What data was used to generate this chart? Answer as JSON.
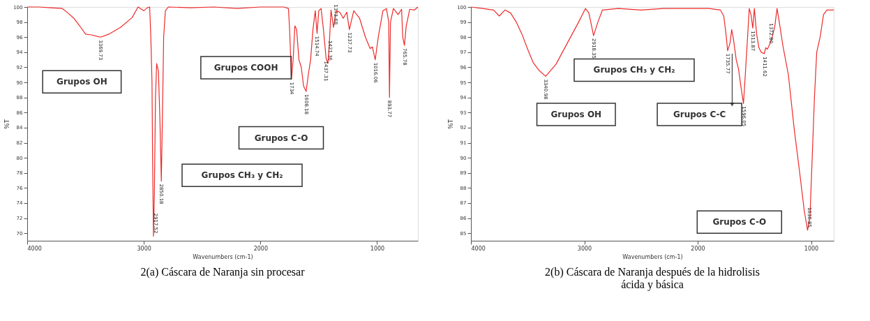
{
  "chart_data": [
    {
      "type": "line",
      "title": "2(a) Cáscara de Naranja sin procesar",
      "xlabel": "Wavenumbers (cm-1)",
      "ylabel": "%T",
      "xlim": [
        4000,
        650
      ],
      "xticks": [
        4000,
        3000,
        2000,
        1000
      ],
      "ylim": [
        69,
        100
      ],
      "yticks": [
        100,
        98,
        96,
        94,
        92,
        90,
        88,
        86,
        84,
        82,
        80,
        78,
        76,
        74,
        72,
        70
      ],
      "grid": false,
      "series": [
        {
          "color": "#ee2a2a",
          "x": [
            4000,
            3900,
            3800,
            3700,
            3650,
            3600,
            3550,
            3500,
            3450,
            3400,
            3369.73,
            3300,
            3200,
            3100,
            3050,
            3000,
            2970,
            2950,
            2940,
            2930,
            2925,
            2917.52,
            2910,
            2900,
            2890,
            2875,
            2862,
            2850.18,
            2840,
            2830,
            2815,
            2790,
            2600,
            2400,
            2200,
            2000,
            1800,
            1760,
            1750,
            1734,
            1720,
            1705,
            1690,
            1670,
            1650,
            1630,
            1608.18,
            1590,
            1570,
            1550,
            1530,
            1514.74,
            1500,
            1480,
            1460,
            1437.31,
            1421.36,
            1410,
            1395,
            1373.68,
            1350,
            1320,
            1290,
            1260,
            1237.73,
            1200,
            1150,
            1100,
            1060,
            1040,
            1016.06,
            990,
            950,
            920,
            900,
            893.77,
            885,
            860,
            820,
            790,
            780,
            765.78,
            750,
            720,
            680,
            650
          ],
          "values": [
            100,
            100,
            99.9,
            99.8,
            99.2,
            98.5,
            97.5,
            96.4,
            96.3,
            96.1,
            96.0,
            96.4,
            97.3,
            98.6,
            100,
            99.5,
            99.9,
            100,
            96,
            90,
            80,
            69.6,
            75,
            88,
            92.5,
            91.5,
            85,
            76.9,
            86,
            96,
            99.5,
            100,
            99.9,
            100,
            99.8,
            100,
            100,
            99.8,
            97,
            90.4,
            93,
            97.5,
            97,
            93,
            92,
            89.5,
            88.8,
            91,
            93,
            97,
            99.5,
            96.5,
            99.5,
            99.8,
            97,
            93.2,
            92.5,
            95,
            99.6,
            97.3,
            99.5,
            99.3,
            98.5,
            99.3,
            97.0,
            99.5,
            98.5,
            96,
            94.5,
            94.7,
            93.0,
            96,
            99.5,
            99.8,
            98,
            88.0,
            98,
            99.8,
            99,
            99.7,
            96,
            94.9,
            97.5,
            99.7,
            99.6,
            100
          ]
        }
      ],
      "annotations": [
        "Grupos OH",
        "Grupos COOH",
        "Grupos C-O",
        "Grupos CH₃ y CH₂",
        {
          "text": "3369.73",
          "x": 3369.73,
          "y": 96.0
        },
        {
          "text": "2917.52",
          "x": 2917.52,
          "y": 69.6
        },
        {
          "text": "2850.18",
          "x": 2850.18,
          "y": 76.9
        },
        {
          "text": "1734",
          "x": 1734,
          "y": 90.4
        },
        {
          "text": "1608.18",
          "x": 1608.18,
          "y": 88.8
        },
        {
          "text": "1514.74",
          "x": 1514.74,
          "y": 96.5
        },
        {
          "text": "1437.31",
          "x": 1437.31,
          "y": 93.2
        },
        {
          "text": "1421.36",
          "x": 1421.36,
          "y": 92.5
        },
        {
          "text": "1373.68",
          "x": 1373.68,
          "y": 97.3
        },
        {
          "text": "1237.73",
          "x": 1237.73,
          "y": 97.0
        },
        {
          "text": "1016.06",
          "x": 1016.06,
          "y": 93.0
        },
        {
          "text": "893.77",
          "x": 893.77,
          "y": 88.0
        },
        {
          "text": "765.78",
          "x": 765.78,
          "y": 94.9
        }
      ]
    },
    {
      "type": "line",
      "title": "2(b) Cáscara de Naranja después de la hidrolisis ácida y básica",
      "xlabel": "Wavenumbers (cm-1)",
      "ylabel": "%T",
      "xlim": [
        4000,
        800
      ],
      "xticks": [
        4000,
        3000,
        2000,
        1000
      ],
      "ylim": [
        84.5,
        100
      ],
      "yticks": [
        100,
        99,
        98,
        97,
        96,
        95,
        94,
        93,
        92,
        91,
        90,
        89,
        88,
        87,
        86,
        85
      ],
      "grid": false,
      "series": [
        {
          "color": "#ee2a2a",
          "x": [
            4000,
            3900,
            3800,
            3750,
            3700,
            3650,
            3600,
            3550,
            3500,
            3450,
            3400,
            3340.98,
            3250,
            3150,
            3050,
            2990,
            2960,
            2940,
            2918.35,
            2880,
            2840,
            2700,
            2500,
            2300,
            2100,
            1900,
            1800,
            1770,
            1750,
            1735.77,
            1715,
            1700,
            1685,
            1660,
            1640,
            1620,
            1596.05,
            1580,
            1560,
            1545,
            1530,
            1513.87,
            1500,
            1480,
            1460,
            1440,
            1411.62,
            1400,
            1385,
            1372.8,
            1350,
            1320,
            1300,
            1280,
            1250,
            1200,
            1150,
            1100,
            1060,
            1030.85,
            1010,
            990,
            970,
            950,
            920,
            890,
            860,
            800
          ],
          "values": [
            100,
            99.9,
            99.8,
            99.4,
            99.8,
            99.6,
            99,
            98.2,
            97.2,
            96.3,
            95.8,
            95.4,
            96.2,
            97.6,
            99,
            99.9,
            99.6,
            98.9,
            98.1,
            99,
            99.8,
            99.9,
            99.8,
            99.9,
            99.9,
            99.9,
            99.8,
            99.4,
            98.2,
            97.1,
            97.6,
            98.5,
            97.9,
            96.5,
            95.9,
            94.8,
            93.6,
            95.5,
            98,
            99.9,
            99.5,
            98.6,
            99.9,
            98.2,
            97.3,
            97.0,
            96.9,
            97.3,
            97.2,
            97.4,
            97.8,
            98.7,
            99.9,
            99,
            97.5,
            95.5,
            92,
            89,
            86.5,
            85.2,
            86,
            90,
            94,
            97,
            98,
            99.5,
            99.8,
            99.8
          ]
        }
      ],
      "annotations": [
        "Grupos CH₃ y CH₂",
        "Grupos OH",
        "Grupos C-C",
        "Grupos C-O",
        {
          "text": "3340.98",
          "x": 3340.98,
          "y": 95.4
        },
        {
          "text": "2918.35",
          "x": 2918.35,
          "y": 98.1
        },
        {
          "text": "1735.77",
          "x": 1735.77,
          "y": 97.1
        },
        {
          "text": "1596.05",
          "x": 1596.05,
          "y": 93.6
        },
        {
          "text": "1513.87",
          "x": 1513.87,
          "y": 98.6
        },
        {
          "text": "1411.62",
          "x": 1411.62,
          "y": 96.9
        },
        {
          "text": "1372.80",
          "x": 1372.8,
          "y": 97.4
        },
        {
          "text": "1030.85",
          "x": 1030.85,
          "y": 85.2
        }
      ]
    }
  ]
}
